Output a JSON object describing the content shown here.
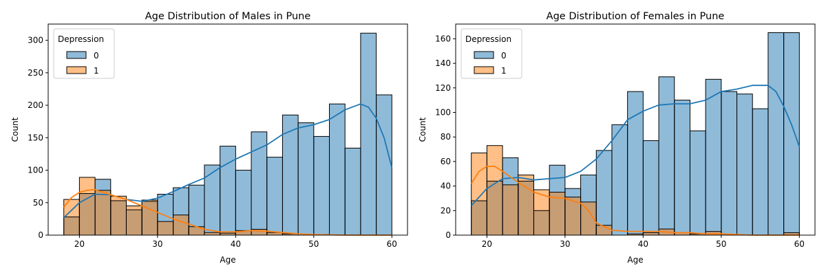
{
  "colors": {
    "dep0": "#1f77b4",
    "dep1": "#ff7f0e"
  },
  "chart_data": [
    {
      "type": "histogram",
      "title": "Age Distribution of Males in Pune",
      "xlabel": "Age",
      "ylabel": "Count",
      "xlim": [
        16,
        62
      ],
      "ylim": [
        0,
        325
      ],
      "xticks": [
        20,
        30,
        40,
        50,
        60
      ],
      "yticks": [
        0,
        50,
        100,
        150,
        200,
        250,
        300
      ],
      "bin_edges": [
        18,
        20,
        22,
        24,
        26,
        28,
        30,
        32,
        34,
        36,
        38,
        40,
        42,
        44,
        46,
        48,
        50,
        52,
        54,
        56,
        58,
        60
      ],
      "legend": {
        "title": "Depression",
        "position": "upper-left",
        "entries": [
          "0",
          "1"
        ]
      },
      "series": [
        {
          "name": "0",
          "counts": [
            28,
            64,
            86,
            53,
            39,
            52,
            63,
            73,
            77,
            108,
            137,
            100,
            159,
            120,
            185,
            173,
            152,
            202,
            134,
            311,
            216
          ],
          "kde": [
            [
              18,
              27
            ],
            [
              20,
              50
            ],
            [
              22,
              63
            ],
            [
              24,
              62
            ],
            [
              26,
              55
            ],
            [
              28,
              52
            ],
            [
              30,
              57
            ],
            [
              32,
              67
            ],
            [
              34,
              78
            ],
            [
              36,
              88
            ],
            [
              38,
              104
            ],
            [
              40,
              117
            ],
            [
              42,
              128
            ],
            [
              44,
              139
            ],
            [
              46,
              155
            ],
            [
              48,
              165
            ],
            [
              50,
              170
            ],
            [
              52,
              178
            ],
            [
              54,
              193
            ],
            [
              56,
              202
            ],
            [
              57,
              197
            ],
            [
              58,
              180
            ],
            [
              59,
              150
            ],
            [
              60,
              104
            ]
          ]
        },
        {
          "name": "1",
          "counts": [
            55,
            89,
            69,
            60,
            45,
            54,
            21,
            31,
            13,
            4,
            3,
            7,
            9,
            4,
            2,
            0,
            1,
            0,
            0,
            0,
            0
          ],
          "kde": [
            [
              18,
              43
            ],
            [
              19,
              58
            ],
            [
              20,
              66
            ],
            [
              21,
              69
            ],
            [
              22,
              70
            ],
            [
              23,
              66
            ],
            [
              24,
              62
            ],
            [
              26,
              55
            ],
            [
              28,
              45
            ],
            [
              30,
              35
            ],
            [
              32,
              25
            ],
            [
              34,
              17
            ],
            [
              36,
              9
            ],
            [
              38,
              5
            ],
            [
              40,
              5
            ],
            [
              42,
              7
            ],
            [
              44,
              6
            ],
            [
              46,
              4
            ],
            [
              48,
              2
            ],
            [
              50,
              1
            ],
            [
              54,
              0
            ],
            [
              60,
              0
            ]
          ]
        }
      ]
    },
    {
      "type": "histogram",
      "title": "Age Distribution of Females in Pune",
      "xlabel": "Age",
      "ylabel": "Count",
      "xlim": [
        16,
        62
      ],
      "ylim": [
        0,
        172
      ],
      "xticks": [
        20,
        30,
        40,
        50,
        60
      ],
      "yticks": [
        0,
        20,
        40,
        60,
        80,
        100,
        120,
        140,
        160
      ],
      "bin_edges": [
        18,
        20,
        22,
        24,
        26,
        28,
        30,
        32,
        34,
        36,
        38,
        40,
        42,
        44,
        46,
        48,
        50,
        52,
        54,
        56,
        58,
        60
      ],
      "legend": {
        "title": "Depression",
        "position": "upper-left",
        "entries": [
          "0",
          "1"
        ]
      },
      "series": [
        {
          "name": "0",
          "counts": [
            28,
            44,
            63,
            44,
            20,
            57,
            38,
            49,
            69,
            90,
            117,
            77,
            129,
            110,
            85,
            127,
            117,
            115,
            103,
            165,
            165
          ],
          "kde": [
            [
              18,
              24
            ],
            [
              20,
              38
            ],
            [
              22,
              46
            ],
            [
              24,
              47
            ],
            [
              26,
              45
            ],
            [
              28,
              46
            ],
            [
              30,
              47
            ],
            [
              32,
              52
            ],
            [
              34,
              62
            ],
            [
              36,
              77
            ],
            [
              38,
              94
            ],
            [
              40,
              101
            ],
            [
              42,
              106
            ],
            [
              44,
              107
            ],
            [
              46,
              107
            ],
            [
              48,
              110
            ],
            [
              50,
              117
            ],
            [
              52,
              119
            ],
            [
              54,
              122
            ],
            [
              56,
              122
            ],
            [
              57,
              117
            ],
            [
              58,
              105
            ],
            [
              59,
              90
            ],
            [
              60,
              72
            ]
          ]
        },
        {
          "name": "1",
          "counts": [
            67,
            73,
            41,
            49,
            37,
            35,
            31,
            27,
            8,
            0,
            1,
            2,
            5,
            2,
            1,
            3,
            0,
            0,
            0,
            0,
            2
          ],
          "kde": [
            [
              18,
              42
            ],
            [
              19,
              52
            ],
            [
              20,
              56
            ],
            [
              21,
              56
            ],
            [
              22,
              52
            ],
            [
              24,
              43
            ],
            [
              26,
              35
            ],
            [
              28,
              31
            ],
            [
              30,
              30
            ],
            [
              32,
              26
            ],
            [
              33,
              20
            ],
            [
              34,
              10
            ],
            [
              36,
              4
            ],
            [
              38,
              3
            ],
            [
              40,
              3
            ],
            [
              42,
              3
            ],
            [
              44,
              2
            ],
            [
              46,
              2
            ],
            [
              48,
              1
            ],
            [
              50,
              1
            ],
            [
              54,
              0
            ],
            [
              60,
              0
            ]
          ]
        }
      ]
    }
  ]
}
